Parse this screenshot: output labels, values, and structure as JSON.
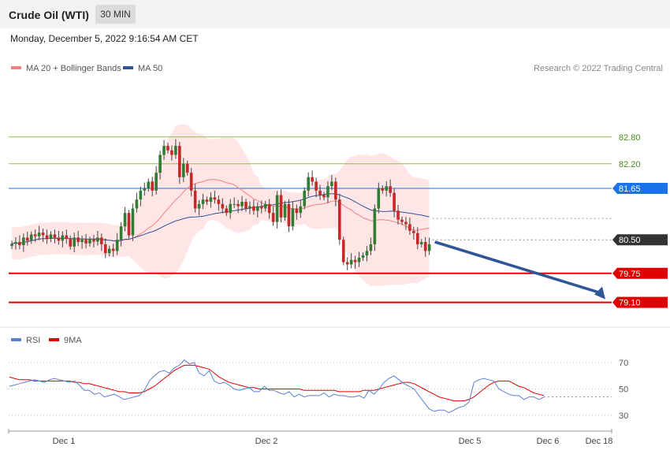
{
  "header": {
    "title": "Crude Oil (WTI)",
    "timeframe": "30 MIN"
  },
  "subtitle": "Monday, December 5, 2022 9:16:54 AM CET",
  "credit": "Research © 2022 Trading Central",
  "legend_main": [
    {
      "label": "MA 20 + Bollinger Bands",
      "color": "#f08080"
    },
    {
      "label": "MA 50",
      "color": "#2f5597"
    }
  ],
  "legend_rsi": [
    {
      "label": "RSI",
      "color": "#5b7fd6"
    },
    {
      "label": "9MA",
      "color": "#e00000"
    }
  ],
  "colors": {
    "up": "#2e7d32",
    "down": "#c62828",
    "band": "#ffe0e0",
    "resistance": "#8bc34a",
    "pivot": "#1a73e8",
    "support": "#e00000",
    "current": "#333333",
    "arrow": "#2f5597"
  },
  "chart_data": [
    {
      "type": "candlestick",
      "ylim": [
        78.9,
        84.1
      ],
      "x_ticks": [
        "Dec 1",
        "Dec 2",
        "Dec 5",
        "Dec 6",
        "Dec 18"
      ],
      "levels": [
        {
          "value": 82.8,
          "label": "82.80",
          "kind": "resistance"
        },
        {
          "value": 82.2,
          "label": "82.20",
          "kind": "resistance"
        },
        {
          "value": 81.65,
          "label": "81.65",
          "kind": "pivot"
        },
        {
          "value": 80.5,
          "label": "80.50",
          "kind": "current"
        },
        {
          "value": 79.75,
          "label": "79.75",
          "kind": "support"
        },
        {
          "value": 79.1,
          "label": "79.10",
          "kind": "support"
        }
      ],
      "close": [
        80.41,
        80.45,
        80.38,
        80.55,
        80.48,
        80.62,
        80.58,
        80.66,
        80.6,
        80.52,
        80.62,
        80.55,
        80.48,
        80.6,
        80.52,
        80.35,
        80.55,
        80.45,
        80.5,
        80.42,
        80.5,
        80.46,
        80.55,
        80.4,
        80.2,
        80.3,
        80.25,
        80.5,
        80.8,
        81.1,
        80.6,
        81.2,
        81.4,
        81.6,
        81.65,
        81.8,
        81.6,
        82.0,
        82.4,
        82.6,
        82.5,
        82.4,
        82.6,
        81.9,
        82.2,
        82.0,
        81.6,
        81.2,
        81.3,
        81.4,
        81.35,
        81.45,
        81.4,
        81.3,
        81.2,
        81.1,
        81.3,
        81.3,
        81.25,
        81.35,
        81.2,
        81.25,
        81.15,
        81.25,
        81.2,
        81.3,
        81.1,
        80.9,
        81.5,
        81.0,
        81.3,
        80.8,
        81.2,
        81.1,
        81.25,
        81.6,
        81.9,
        81.8,
        81.6,
        81.5,
        81.45,
        81.7,
        81.8,
        81.4,
        80.5,
        80.0,
        79.95,
        80.05,
        80.0,
        80.1,
        80.15,
        80.25,
        80.4,
        81.2,
        81.65,
        81.6,
        81.7,
        81.55,
        81.15,
        80.95,
        80.9,
        80.85,
        80.7,
        80.65,
        80.4,
        80.45,
        80.25,
        80.4
      ]
    },
    {
      "type": "line",
      "yticks": [
        30,
        50,
        70
      ],
      "series": [
        {
          "name": "RSI",
          "values": [
            52,
            53,
            54,
            55,
            56,
            57,
            56,
            55,
            57,
            58,
            57,
            56,
            55,
            56,
            53,
            49,
            49,
            46,
            47,
            44,
            45,
            46,
            44,
            42,
            43,
            44,
            45,
            49,
            56,
            60,
            63,
            64,
            62,
            66,
            68,
            72,
            69,
            70,
            62,
            60,
            64,
            56,
            54,
            55,
            53,
            50,
            49,
            50,
            51,
            48,
            48,
            52,
            49,
            49,
            47,
            46,
            48,
            44,
            46,
            44,
            45,
            45,
            45,
            47,
            44,
            46,
            45,
            45,
            44,
            44,
            45,
            43,
            49,
            46,
            50,
            55,
            58,
            60,
            57,
            54,
            52,
            50,
            45,
            40,
            35,
            33,
            34,
            34,
            32,
            34,
            36,
            37,
            40,
            55,
            57,
            58,
            57,
            56,
            50,
            48,
            46,
            45,
            45,
            42,
            44,
            44,
            42,
            44
          ]
        },
        {
          "name": "9MA",
          "values": [
            59,
            58,
            57,
            57,
            57,
            56,
            56,
            56,
            56,
            56,
            56,
            56,
            56,
            55,
            55,
            54,
            54,
            53,
            52,
            51,
            50,
            49,
            48,
            48,
            47,
            47,
            47,
            48,
            50,
            52,
            55,
            58,
            61,
            64,
            66,
            68,
            68,
            68,
            67,
            66,
            65,
            62,
            59,
            57,
            55,
            54,
            53,
            52,
            51,
            51,
            50,
            50,
            50,
            50,
            50,
            50,
            50,
            50,
            50,
            49,
            49,
            49,
            49,
            49,
            49,
            49,
            48,
            48,
            48,
            48,
            48,
            49,
            49,
            49,
            50,
            51,
            52,
            53,
            54,
            55,
            55,
            54,
            52,
            50,
            48,
            46,
            44,
            43,
            42,
            41,
            41,
            41,
            42,
            44,
            47,
            50,
            53,
            55,
            56,
            56,
            56,
            54,
            52,
            51,
            49,
            47,
            46,
            45
          ]
        }
      ]
    }
  ]
}
